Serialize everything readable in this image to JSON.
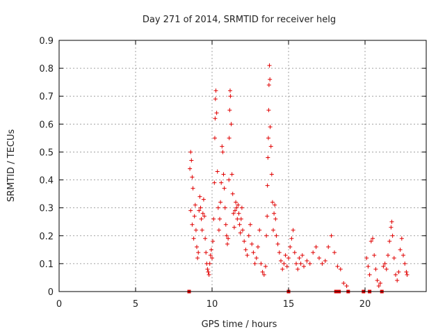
{
  "chart_data": {
    "type": "scatter",
    "title": "Day 271 of 2014, SRMTID for receiver helg",
    "xlabel": "GPS time / hours",
    "ylabel": "SRMTID / TECUs",
    "xlim": [
      0,
      24
    ],
    "ylim": [
      0,
      0.9
    ],
    "xticks": [
      0,
      5,
      10,
      15,
      20
    ],
    "yticks": [
      0,
      0.1,
      0.2,
      0.3,
      0.4,
      0.5,
      0.6,
      0.7,
      0.8,
      0.9
    ],
    "grid": true,
    "marker": "plus",
    "color": "#e00000",
    "zero_markers_x": [
      8.5,
      15.0,
      18.1,
      18.3,
      18.9,
      19.9,
      20.3,
      21.1
    ],
    "series": [
      {
        "name": "SRMTID",
        "points": [
          [
            8.55,
            0.44
          ],
          [
            8.6,
            0.5
          ],
          [
            8.65,
            0.47
          ],
          [
            8.7,
            0.41
          ],
          [
            8.75,
            0.37
          ],
          [
            8.6,
            0.29
          ],
          [
            8.7,
            0.24
          ],
          [
            8.8,
            0.19
          ],
          [
            8.85,
            0.27
          ],
          [
            8.9,
            0.31
          ],
          [
            8.95,
            0.22
          ],
          [
            9.0,
            0.16
          ],
          [
            9.05,
            0.12
          ],
          [
            9.1,
            0.14
          ],
          [
            9.15,
            0.29
          ],
          [
            9.2,
            0.34
          ],
          [
            9.25,
            0.3
          ],
          [
            9.3,
            0.26
          ],
          [
            9.35,
            0.22
          ],
          [
            9.4,
            0.28
          ],
          [
            9.45,
            0.33
          ],
          [
            9.5,
            0.27
          ],
          [
            9.55,
            0.19
          ],
          [
            9.6,
            0.14
          ],
          [
            9.65,
            0.1
          ],
          [
            9.7,
            0.08
          ],
          [
            9.75,
            0.07
          ],
          [
            9.8,
            0.06
          ],
          [
            9.85,
            0.1
          ],
          [
            9.9,
            0.13
          ],
          [
            9.95,
            0.15
          ],
          [
            10.0,
            0.12
          ],
          [
            10.05,
            0.18
          ],
          [
            10.1,
            0.26
          ],
          [
            10.15,
            0.39
          ],
          [
            10.18,
            0.55
          ],
          [
            10.2,
            0.62
          ],
          [
            10.22,
            0.69
          ],
          [
            10.25,
            0.72
          ],
          [
            10.3,
            0.64
          ],
          [
            10.35,
            0.43
          ],
          [
            10.4,
            0.3
          ],
          [
            10.45,
            0.22
          ],
          [
            10.5,
            0.26
          ],
          [
            10.55,
            0.32
          ],
          [
            10.6,
            0.39
          ],
          [
            10.65,
            0.52
          ],
          [
            10.7,
            0.5
          ],
          [
            10.75,
            0.42
          ],
          [
            10.8,
            0.37
          ],
          [
            10.85,
            0.3
          ],
          [
            10.9,
            0.24
          ],
          [
            10.95,
            0.2
          ],
          [
            11.0,
            0.17
          ],
          [
            11.05,
            0.19
          ],
          [
            11.1,
            0.4
          ],
          [
            11.12,
            0.55
          ],
          [
            11.15,
            0.65
          ],
          [
            11.18,
            0.72
          ],
          [
            11.2,
            0.7
          ],
          [
            11.25,
            0.6
          ],
          [
            11.3,
            0.42
          ],
          [
            11.35,
            0.35
          ],
          [
            11.4,
            0.28
          ],
          [
            11.45,
            0.23
          ],
          [
            11.5,
            0.29
          ],
          [
            11.55,
            0.32
          ],
          [
            11.6,
            0.3
          ],
          [
            11.65,
            0.26
          ],
          [
            11.7,
            0.31
          ],
          [
            11.75,
            0.28
          ],
          [
            11.8,
            0.24
          ],
          [
            11.85,
            0.21
          ],
          [
            11.9,
            0.26
          ],
          [
            11.95,
            0.3
          ],
          [
            12.0,
            0.22
          ],
          [
            12.1,
            0.18
          ],
          [
            12.2,
            0.15
          ],
          [
            12.3,
            0.13
          ],
          [
            12.4,
            0.2
          ],
          [
            12.5,
            0.24
          ],
          [
            12.6,
            0.17
          ],
          [
            12.7,
            0.14
          ],
          [
            12.8,
            0.1
          ],
          [
            12.9,
            0.12
          ],
          [
            13.0,
            0.16
          ],
          [
            13.1,
            0.22
          ],
          [
            13.2,
            0.1
          ],
          [
            13.3,
            0.07
          ],
          [
            13.4,
            0.06
          ],
          [
            13.5,
            0.09
          ],
          [
            13.55,
            0.2
          ],
          [
            13.6,
            0.27
          ],
          [
            13.62,
            0.38
          ],
          [
            13.65,
            0.48
          ],
          [
            13.68,
            0.55
          ],
          [
            13.7,
            0.65
          ],
          [
            13.72,
            0.74
          ],
          [
            13.75,
            0.81
          ],
          [
            13.78,
            0.76
          ],
          [
            13.8,
            0.59
          ],
          [
            13.85,
            0.52
          ],
          [
            13.9,
            0.42
          ],
          [
            13.95,
            0.32
          ],
          [
            14.0,
            0.22
          ],
          [
            14.05,
            0.28
          ],
          [
            14.1,
            0.31
          ],
          [
            14.15,
            0.26
          ],
          [
            14.2,
            0.2
          ],
          [
            14.3,
            0.17
          ],
          [
            14.4,
            0.14
          ],
          [
            14.5,
            0.11
          ],
          [
            14.6,
            0.08
          ],
          [
            14.7,
            0.1
          ],
          [
            14.8,
            0.13
          ],
          [
            14.9,
            0.09
          ],
          [
            15.0,
            0.12
          ],
          [
            15.1,
            0.16
          ],
          [
            15.2,
            0.19
          ],
          [
            15.3,
            0.22
          ],
          [
            15.4,
            0.14
          ],
          [
            15.5,
            0.1
          ],
          [
            15.6,
            0.08
          ],
          [
            15.7,
            0.12
          ],
          [
            15.8,
            0.1
          ],
          [
            15.9,
            0.13
          ],
          [
            16.0,
            0.09
          ],
          [
            16.2,
            0.11
          ],
          [
            16.4,
            0.1
          ],
          [
            16.6,
            0.14
          ],
          [
            16.8,
            0.16
          ],
          [
            17.0,
            0.12
          ],
          [
            17.2,
            0.1
          ],
          [
            17.4,
            0.11
          ],
          [
            17.6,
            0.16
          ],
          [
            17.8,
            0.2
          ],
          [
            18.0,
            0.14
          ],
          [
            18.2,
            0.09
          ],
          [
            18.4,
            0.08
          ],
          [
            18.6,
            0.03
          ],
          [
            18.8,
            0.02
          ],
          [
            20.1,
            0.12
          ],
          [
            20.2,
            0.09
          ],
          [
            20.3,
            0.06
          ],
          [
            20.4,
            0.18
          ],
          [
            20.5,
            0.19
          ],
          [
            20.6,
            0.13
          ],
          [
            20.7,
            0.08
          ],
          [
            20.8,
            0.04
          ],
          [
            20.9,
            0.02
          ],
          [
            21.0,
            0.03
          ],
          [
            21.2,
            0.09
          ],
          [
            21.3,
            0.1
          ],
          [
            21.4,
            0.08
          ],
          [
            21.5,
            0.13
          ],
          [
            21.6,
            0.18
          ],
          [
            21.7,
            0.23
          ],
          [
            21.75,
            0.25
          ],
          [
            21.8,
            0.2
          ],
          [
            21.9,
            0.12
          ],
          [
            22.0,
            0.06
          ],
          [
            22.1,
            0.04
          ],
          [
            22.2,
            0.07
          ],
          [
            22.3,
            0.15
          ],
          [
            22.4,
            0.19
          ],
          [
            22.5,
            0.13
          ],
          [
            22.6,
            0.1
          ],
          [
            22.7,
            0.07
          ],
          [
            22.75,
            0.06
          ]
        ]
      }
    ]
  }
}
